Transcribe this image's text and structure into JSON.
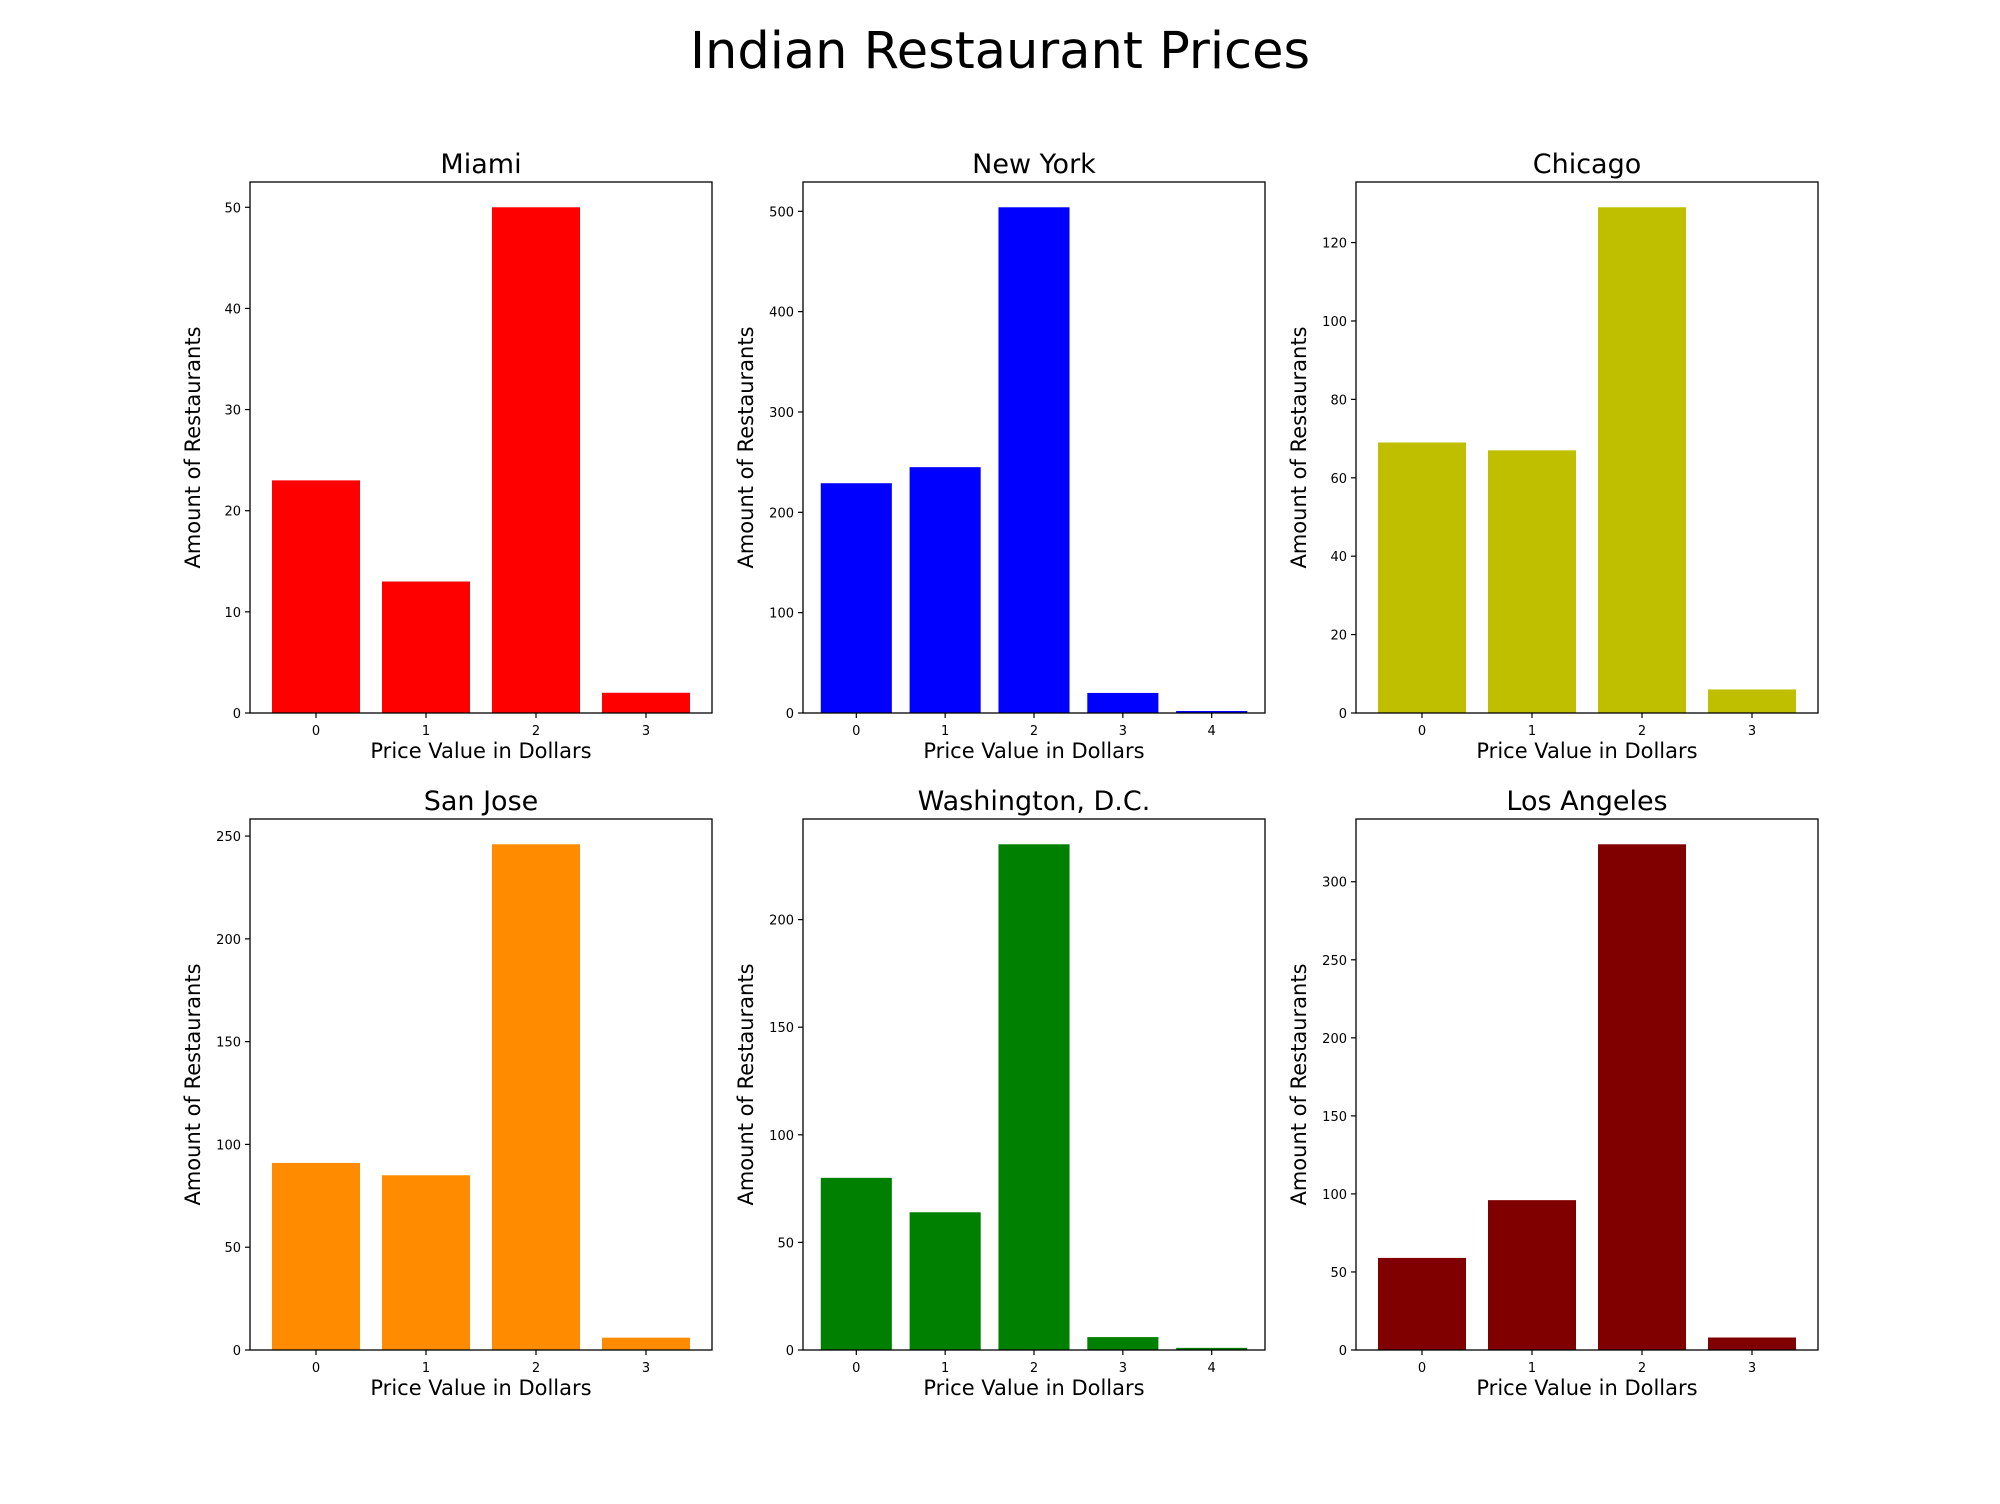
{
  "figure": {
    "title": "Indian Restaurant Prices"
  },
  "chart_data": [
    {
      "type": "bar",
      "title": "Miami",
      "xlabel": "Price Value in Dollars",
      "ylabel": "Amount of Restaurants",
      "color": "#ff0000",
      "categories": [
        "0",
        "1",
        "2",
        "3"
      ],
      "values": [
        23,
        13,
        50,
        2
      ],
      "ylim": [
        0,
        52.5
      ],
      "yticks": [
        0,
        10,
        20,
        30,
        40,
        50
      ],
      "grid": false
    },
    {
      "type": "bar",
      "title": "New York",
      "xlabel": "Price Value in Dollars",
      "ylabel": "Amount of Restaurants",
      "color": "#0000ff",
      "categories": [
        "0",
        "1",
        "2",
        "3",
        "4"
      ],
      "values": [
        229,
        245,
        504,
        20,
        2
      ],
      "ylim": [
        0,
        529.2
      ],
      "yticks": [
        0,
        100,
        200,
        300,
        400,
        500
      ],
      "grid": false
    },
    {
      "type": "bar",
      "title": "Chicago",
      "xlabel": "Price Value in Dollars",
      "ylabel": "Amount of Restaurants",
      "color": "#bfbf00",
      "categories": [
        "0",
        "1",
        "2",
        "3"
      ],
      "values": [
        69,
        67,
        129,
        6
      ],
      "ylim": [
        0,
        135.45
      ],
      "yticks": [
        0,
        20,
        40,
        60,
        80,
        100,
        120
      ],
      "grid": false
    },
    {
      "type": "bar",
      "title": "San Jose",
      "xlabel": "Price Value in Dollars",
      "ylabel": "Amount of Restaurants",
      "color": "#ff8c00",
      "categories": [
        "0",
        "1",
        "2",
        "3"
      ],
      "values": [
        91,
        85,
        246,
        6
      ],
      "ylim": [
        0,
        258.3
      ],
      "yticks": [
        0,
        50,
        100,
        150,
        200,
        250
      ],
      "grid": false
    },
    {
      "type": "bar",
      "title": "Washington, D.C.",
      "xlabel": "Price Value in Dollars",
      "ylabel": "Amount of Restaurants",
      "color": "#008000",
      "categories": [
        "0",
        "1",
        "2",
        "3",
        "4"
      ],
      "values": [
        80,
        64,
        235,
        6,
        1
      ],
      "ylim": [
        0,
        246.75
      ],
      "yticks": [
        0,
        50,
        100,
        150,
        200
      ],
      "grid": false
    },
    {
      "type": "bar",
      "title": "Los Angeles",
      "xlabel": "Price Value in Dollars",
      "ylabel": "Amount of Restaurants",
      "color": "#800000",
      "categories": [
        "0",
        "1",
        "2",
        "3"
      ],
      "values": [
        59,
        96,
        324,
        8
      ],
      "ylim": [
        0,
        340.2
      ],
      "yticks": [
        0,
        50,
        100,
        150,
        200,
        250,
        300
      ],
      "grid": false
    }
  ]
}
